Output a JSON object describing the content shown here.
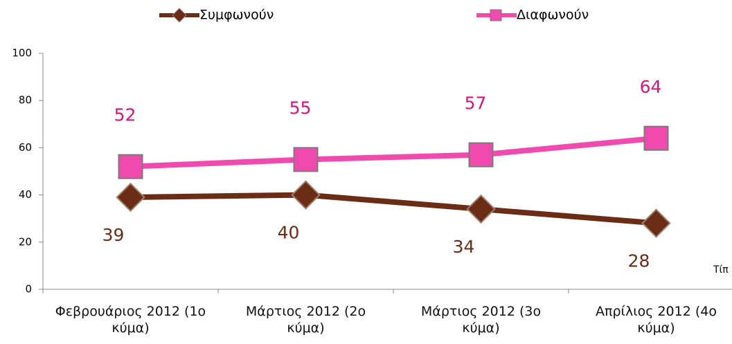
{
  "chart_data": {
    "type": "line",
    "categories": [
      "Φεβρουάριος 2012 (1ο κύμα)",
      "Μάρτιος 2012 (2ο κύμα)",
      "Μάρτιος 2012 (3ο κύμα)",
      "Απρίλιος 2012 (4ο κύμα)"
    ],
    "series": [
      {
        "name": "Συμφωνούν",
        "color": "#6b2c16",
        "values": [
          39,
          40,
          34,
          28
        ]
      },
      {
        "name": "Διαφωνούν",
        "color": "#f04aae",
        "values": [
          52,
          55,
          57,
          64
        ]
      }
    ],
    "ylim": [
      0,
      100
    ],
    "yticks": [
      0,
      20,
      40,
      60,
      80,
      100
    ],
    "annotations": [
      "Τίπ"
    ]
  }
}
